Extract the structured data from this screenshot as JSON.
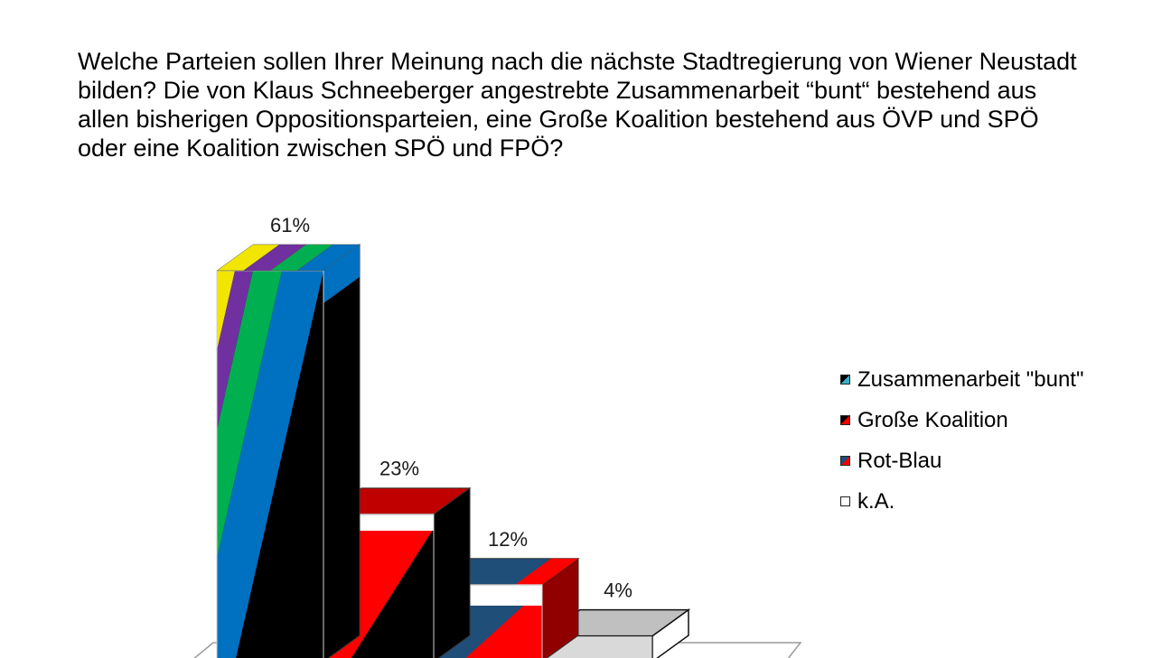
{
  "question": {
    "lines": [
      "Welche Parteien sollen Ihrer Meinung nach die nächste Stadtregierung von Wiener Neustadt",
      "bilden? Die von Klaus Schneeberger angestrebte Zusammenarbeit “bunt“ bestehend aus",
      "allen bisherigen Oppositionsparteien, eine Große Koalition bestehend aus ÖVP und SPÖ",
      "oder eine Koalition zwischen SPÖ und FPÖ?"
    ]
  },
  "chart_data": {
    "type": "bar",
    "style": "3d-column",
    "categories": [
      "Zusammenarbeit \"bunt\"",
      "Große Koalition",
      "Rot-Blau",
      "k.A."
    ],
    "values": [
      61,
      23,
      12,
      4
    ],
    "value_labels": [
      "61%",
      "23%",
      "12%",
      "4%"
    ],
    "unit": "%",
    "legend": [
      "Zusammenarbeit \"bunt\"",
      "Große Koalition",
      "Rot-Blau",
      "k.A."
    ],
    "legend_position": "right",
    "grid": false,
    "colors": {
      "bunt_stripes": [
        "#f2e600",
        "#7030a0",
        "#00b050",
        "#0070c0"
      ],
      "bunt_dark": "#000000",
      "grosse_koalition": [
        "#ff0000",
        "#000000"
      ],
      "rot_blau": [
        "#1f4e79",
        "#ff0000"
      ],
      "ka": "#c0c0c0"
    }
  }
}
